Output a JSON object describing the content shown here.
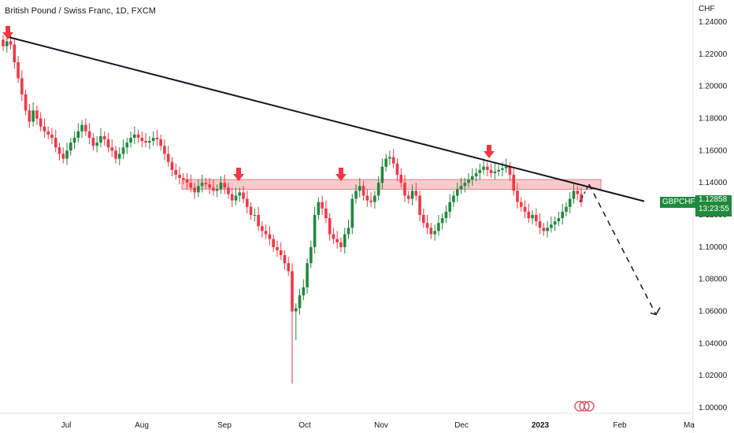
{
  "header": {
    "title": "British Pound / Swiss Franc, 1D, FXCM",
    "unit": "CHF"
  },
  "price_tag": {
    "symbol": "GBPCHF",
    "price": "1.12858",
    "countdown": "13:23:55"
  },
  "colors": {
    "up": "#1e8a3c",
    "down": "#f23645",
    "zone": "#f7c6c6",
    "line": "#131722",
    "arrow": "#f23645"
  },
  "chart_data": {
    "type": "candlestick",
    "title": "British Pound / Swiss Franc, 1D, FXCM",
    "ylim": [
      1.0,
      1.24
    ],
    "yticks": [
      "1.24000",
      "1.22000",
      "1.20000",
      "1.18000",
      "1.16000",
      "1.14000",
      "1.12000",
      "1.10000",
      "1.08000",
      "1.06000",
      "1.04000",
      "1.02000",
      "1.00000"
    ],
    "xticks": [
      "Jul",
      "Aug",
      "Sep",
      "Oct",
      "Nov",
      "Dec",
      "2023",
      "Feb",
      "Ma"
    ],
    "resistance_zone": [
      1.136,
      1.142
    ],
    "trendline": {
      "from": [
        "Jun",
        1.23
      ],
      "to": [
        "Jan",
        1.13
      ]
    },
    "projection_target": 1.058,
    "last_price": 1.12858,
    "close_series": [
      1.225,
      1.228,
      1.226,
      1.215,
      1.205,
      1.195,
      1.185,
      1.178,
      1.185,
      1.18,
      1.175,
      1.172,
      1.17,
      1.168,
      1.162,
      1.158,
      1.155,
      1.16,
      1.165,
      1.168,
      1.172,
      1.176,
      1.172,
      1.168,
      1.163,
      1.165,
      1.169,
      1.167,
      1.162,
      1.16,
      1.155,
      1.158,
      1.162,
      1.165,
      1.168,
      1.17,
      1.168,
      1.166,
      1.165,
      1.166,
      1.168,
      1.167,
      1.163,
      1.158,
      1.153,
      1.148,
      1.145,
      1.143,
      1.142,
      1.14,
      1.137,
      1.134,
      1.138,
      1.14,
      1.139,
      1.137,
      1.135,
      1.136,
      1.14,
      1.137,
      1.133,
      1.129,
      1.132,
      1.134,
      1.13,
      1.125,
      1.12,
      1.12,
      1.113,
      1.11,
      1.108,
      1.105,
      1.1,
      1.098,
      1.095,
      1.09,
      1.085,
      1.06,
      1.062,
      1.07,
      1.075,
      1.09,
      1.1,
      1.12,
      1.128,
      1.124,
      1.118,
      1.108,
      1.105,
      1.103,
      1.1,
      1.108,
      1.112,
      1.13,
      1.135,
      1.138,
      1.132,
      1.129,
      1.128,
      1.132,
      1.14,
      1.15,
      1.155,
      1.156,
      1.152,
      1.145,
      1.14,
      1.132,
      1.13,
      1.135,
      1.132,
      1.12,
      1.115,
      1.112,
      1.108,
      1.11,
      1.115,
      1.118,
      1.122,
      1.128,
      1.132,
      1.136,
      1.138,
      1.14,
      1.142,
      1.144,
      1.146,
      1.148,
      1.15,
      1.148,
      1.146,
      1.147,
      1.148,
      1.149,
      1.15,
      1.145,
      1.135,
      1.128,
      1.125,
      1.122,
      1.118,
      1.12,
      1.116,
      1.112,
      1.11,
      1.112,
      1.114,
      1.116,
      1.118,
      1.122,
      1.125,
      1.13,
      1.135,
      1.133,
      1.128
    ]
  }
}
